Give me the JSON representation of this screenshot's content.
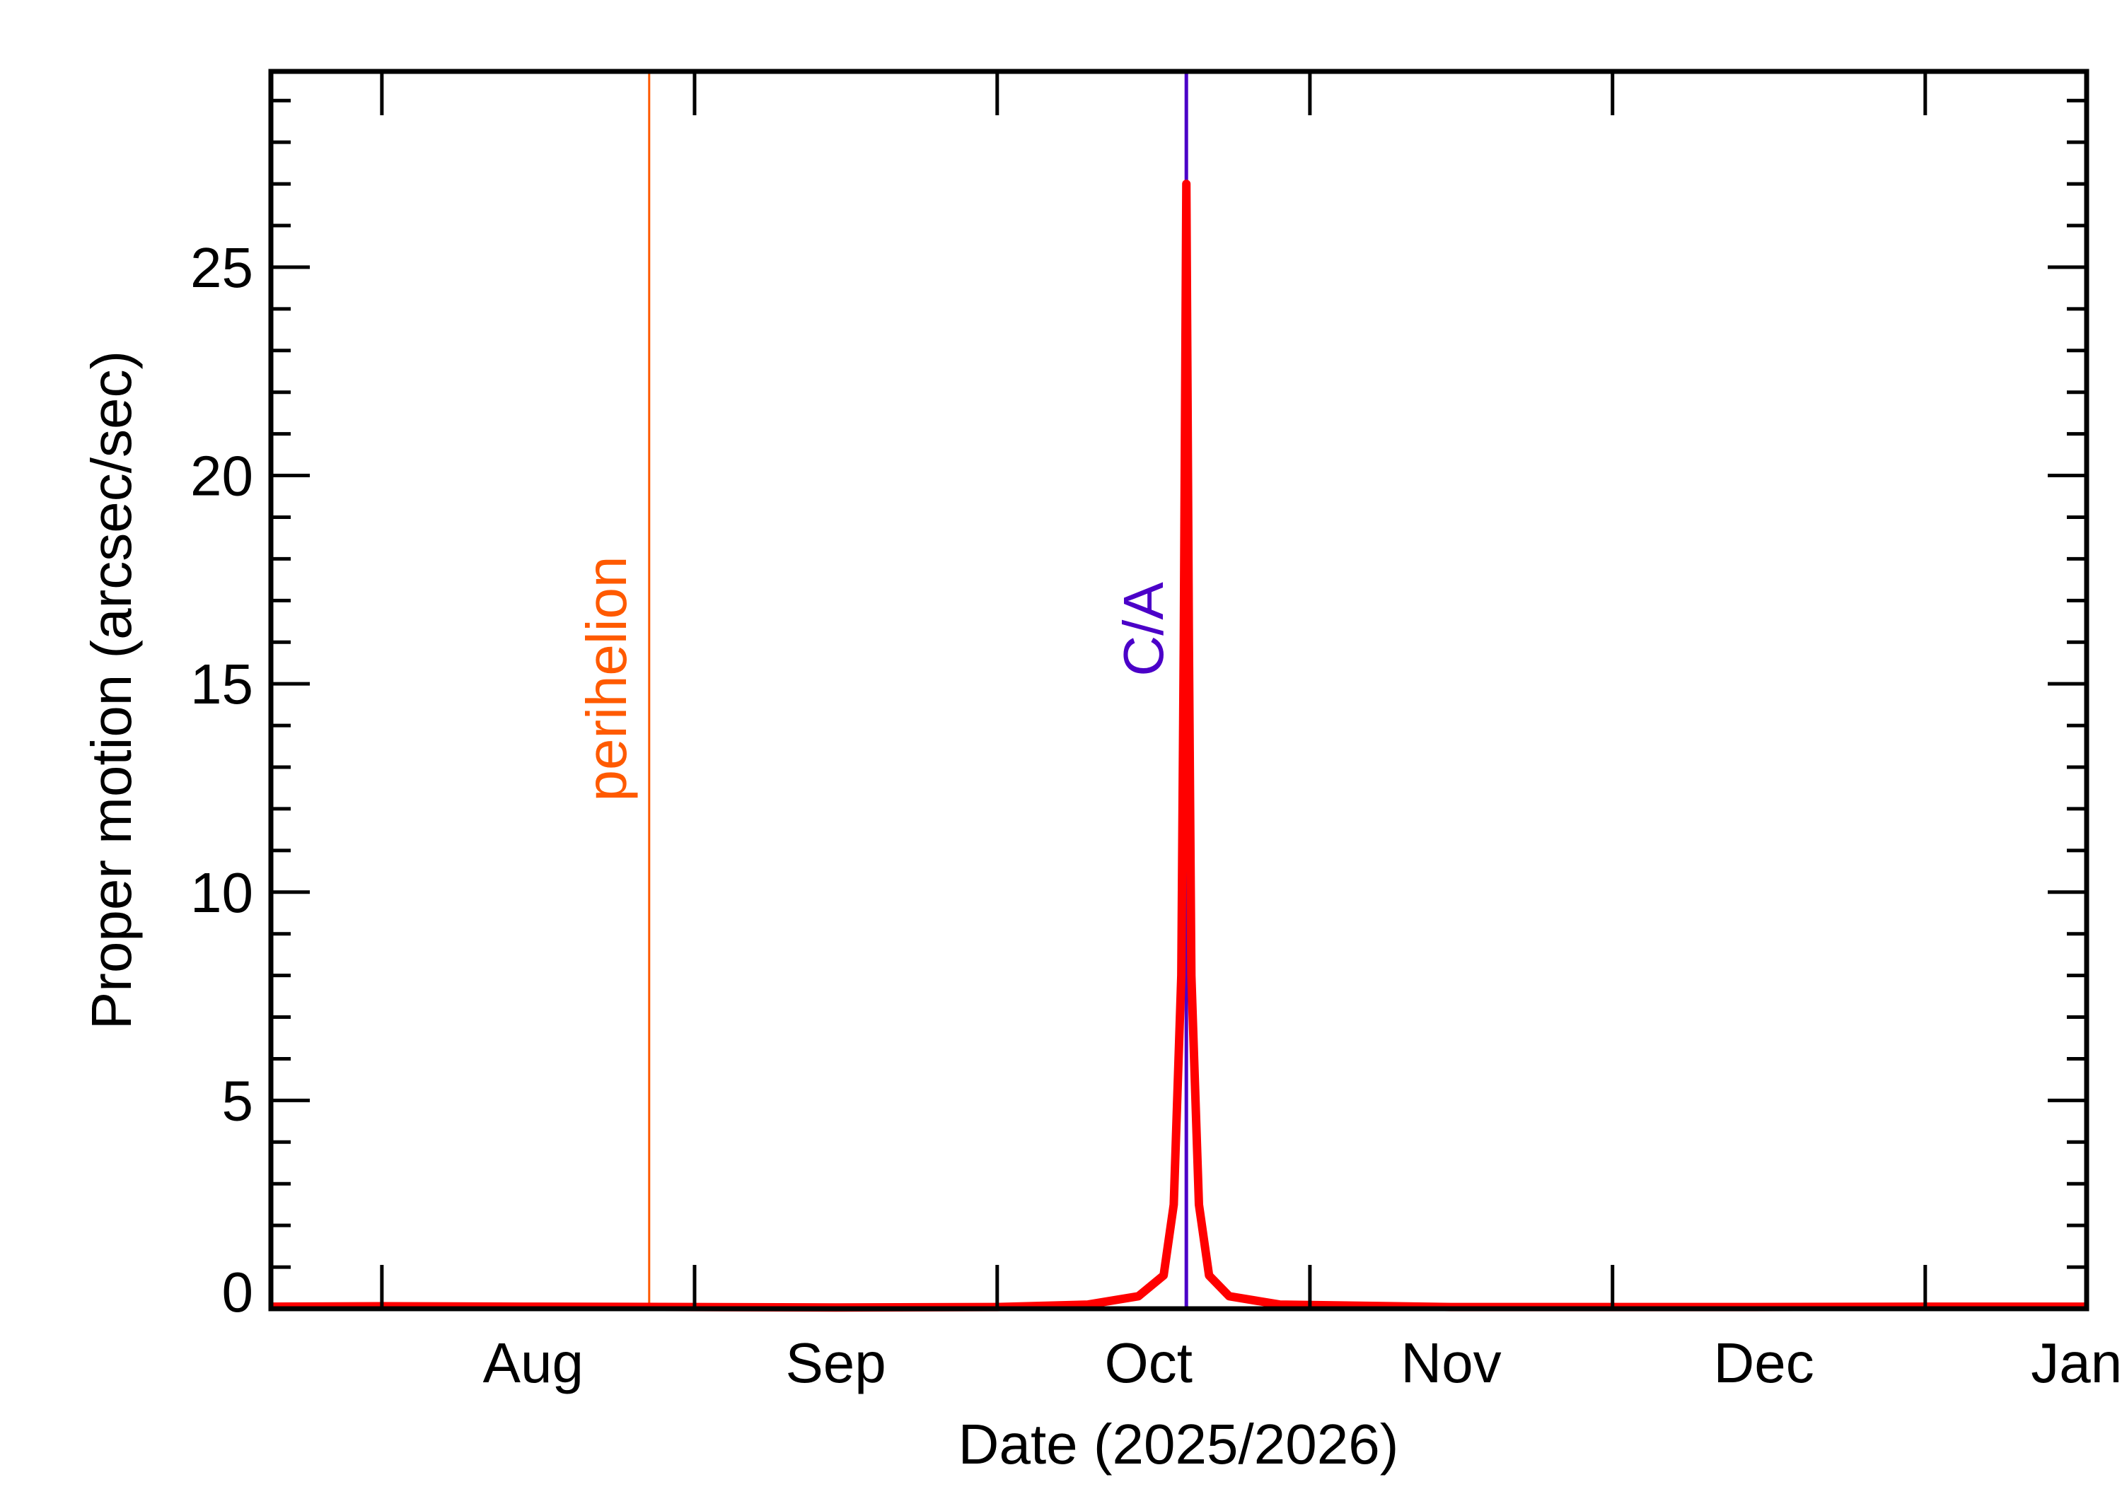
{
  "chart_data": {
    "type": "line",
    "title": "",
    "xlabel": "Date (2025/2026)",
    "ylabel": "Proper motion (arcsec/sec)",
    "xlim": [
      "2025-07-21",
      "2026-01-17"
    ],
    "ylim": [
      0,
      29.7
    ],
    "x_ticks": [
      "2025-08-01",
      "2025-09-01",
      "2025-10-01",
      "2025-11-01",
      "2025-12-01",
      "2026-01-01"
    ],
    "x_tick_labels": [
      {
        "date": "2025-08-16",
        "label": "Aug"
      },
      {
        "date": "2025-09-15",
        "label": "Sep"
      },
      {
        "date": "2025-10-16",
        "label": "Oct"
      },
      {
        "date": "2025-11-15",
        "label": "Nov"
      },
      {
        "date": "2025-12-16",
        "label": "Dec"
      },
      {
        "date": "2026-01-16",
        "label": "Jan"
      }
    ],
    "y_ticks": [
      0,
      5,
      10,
      15,
      20,
      25
    ],
    "y_tick_labels": [
      "0",
      "5",
      "10",
      "15",
      "20",
      "25"
    ],
    "y_minor_step": 1,
    "grid": false,
    "series": [
      {
        "color": "#ff0000",
        "points": [
          [
            "2025-07-21",
            0.05
          ],
          [
            "2025-08-01",
            0.06
          ],
          [
            "2025-08-15",
            0.05
          ],
          [
            "2025-09-01",
            0.04
          ],
          [
            "2025-09-15",
            0.03
          ],
          [
            "2025-10-01",
            0.04
          ],
          [
            "2025-10-10",
            0.1
          ],
          [
            "2025-10-15",
            0.3
          ],
          [
            "2025-10-17T12:00",
            0.8
          ],
          [
            "2025-10-18T12:00",
            2.5
          ],
          [
            "2025-10-19T06:00",
            8
          ],
          [
            "2025-10-19T12:00",
            16
          ],
          [
            "2025-10-19T18:00",
            27
          ],
          [
            "2025-10-20T00:00",
            16
          ],
          [
            "2025-10-20T06:00",
            8
          ],
          [
            "2025-10-21T00:00",
            2.5
          ],
          [
            "2025-10-22T00:00",
            0.8
          ],
          [
            "2025-10-24",
            0.3
          ],
          [
            "2025-10-29",
            0.1
          ],
          [
            "2025-11-15",
            0.04
          ],
          [
            "2025-12-01",
            0.04
          ],
          [
            "2025-12-15",
            0.04
          ],
          [
            "2026-01-01",
            0.05
          ],
          [
            "2026-01-17",
            0.05
          ]
        ]
      }
    ],
    "annotations": [
      {
        "label": "perihelion",
        "date": "2025-08-27T12:00",
        "color": "#ff5a00"
      },
      {
        "label": "C/A",
        "date": "2025-10-19T18:00",
        "color": "#4b00c8"
      }
    ]
  }
}
